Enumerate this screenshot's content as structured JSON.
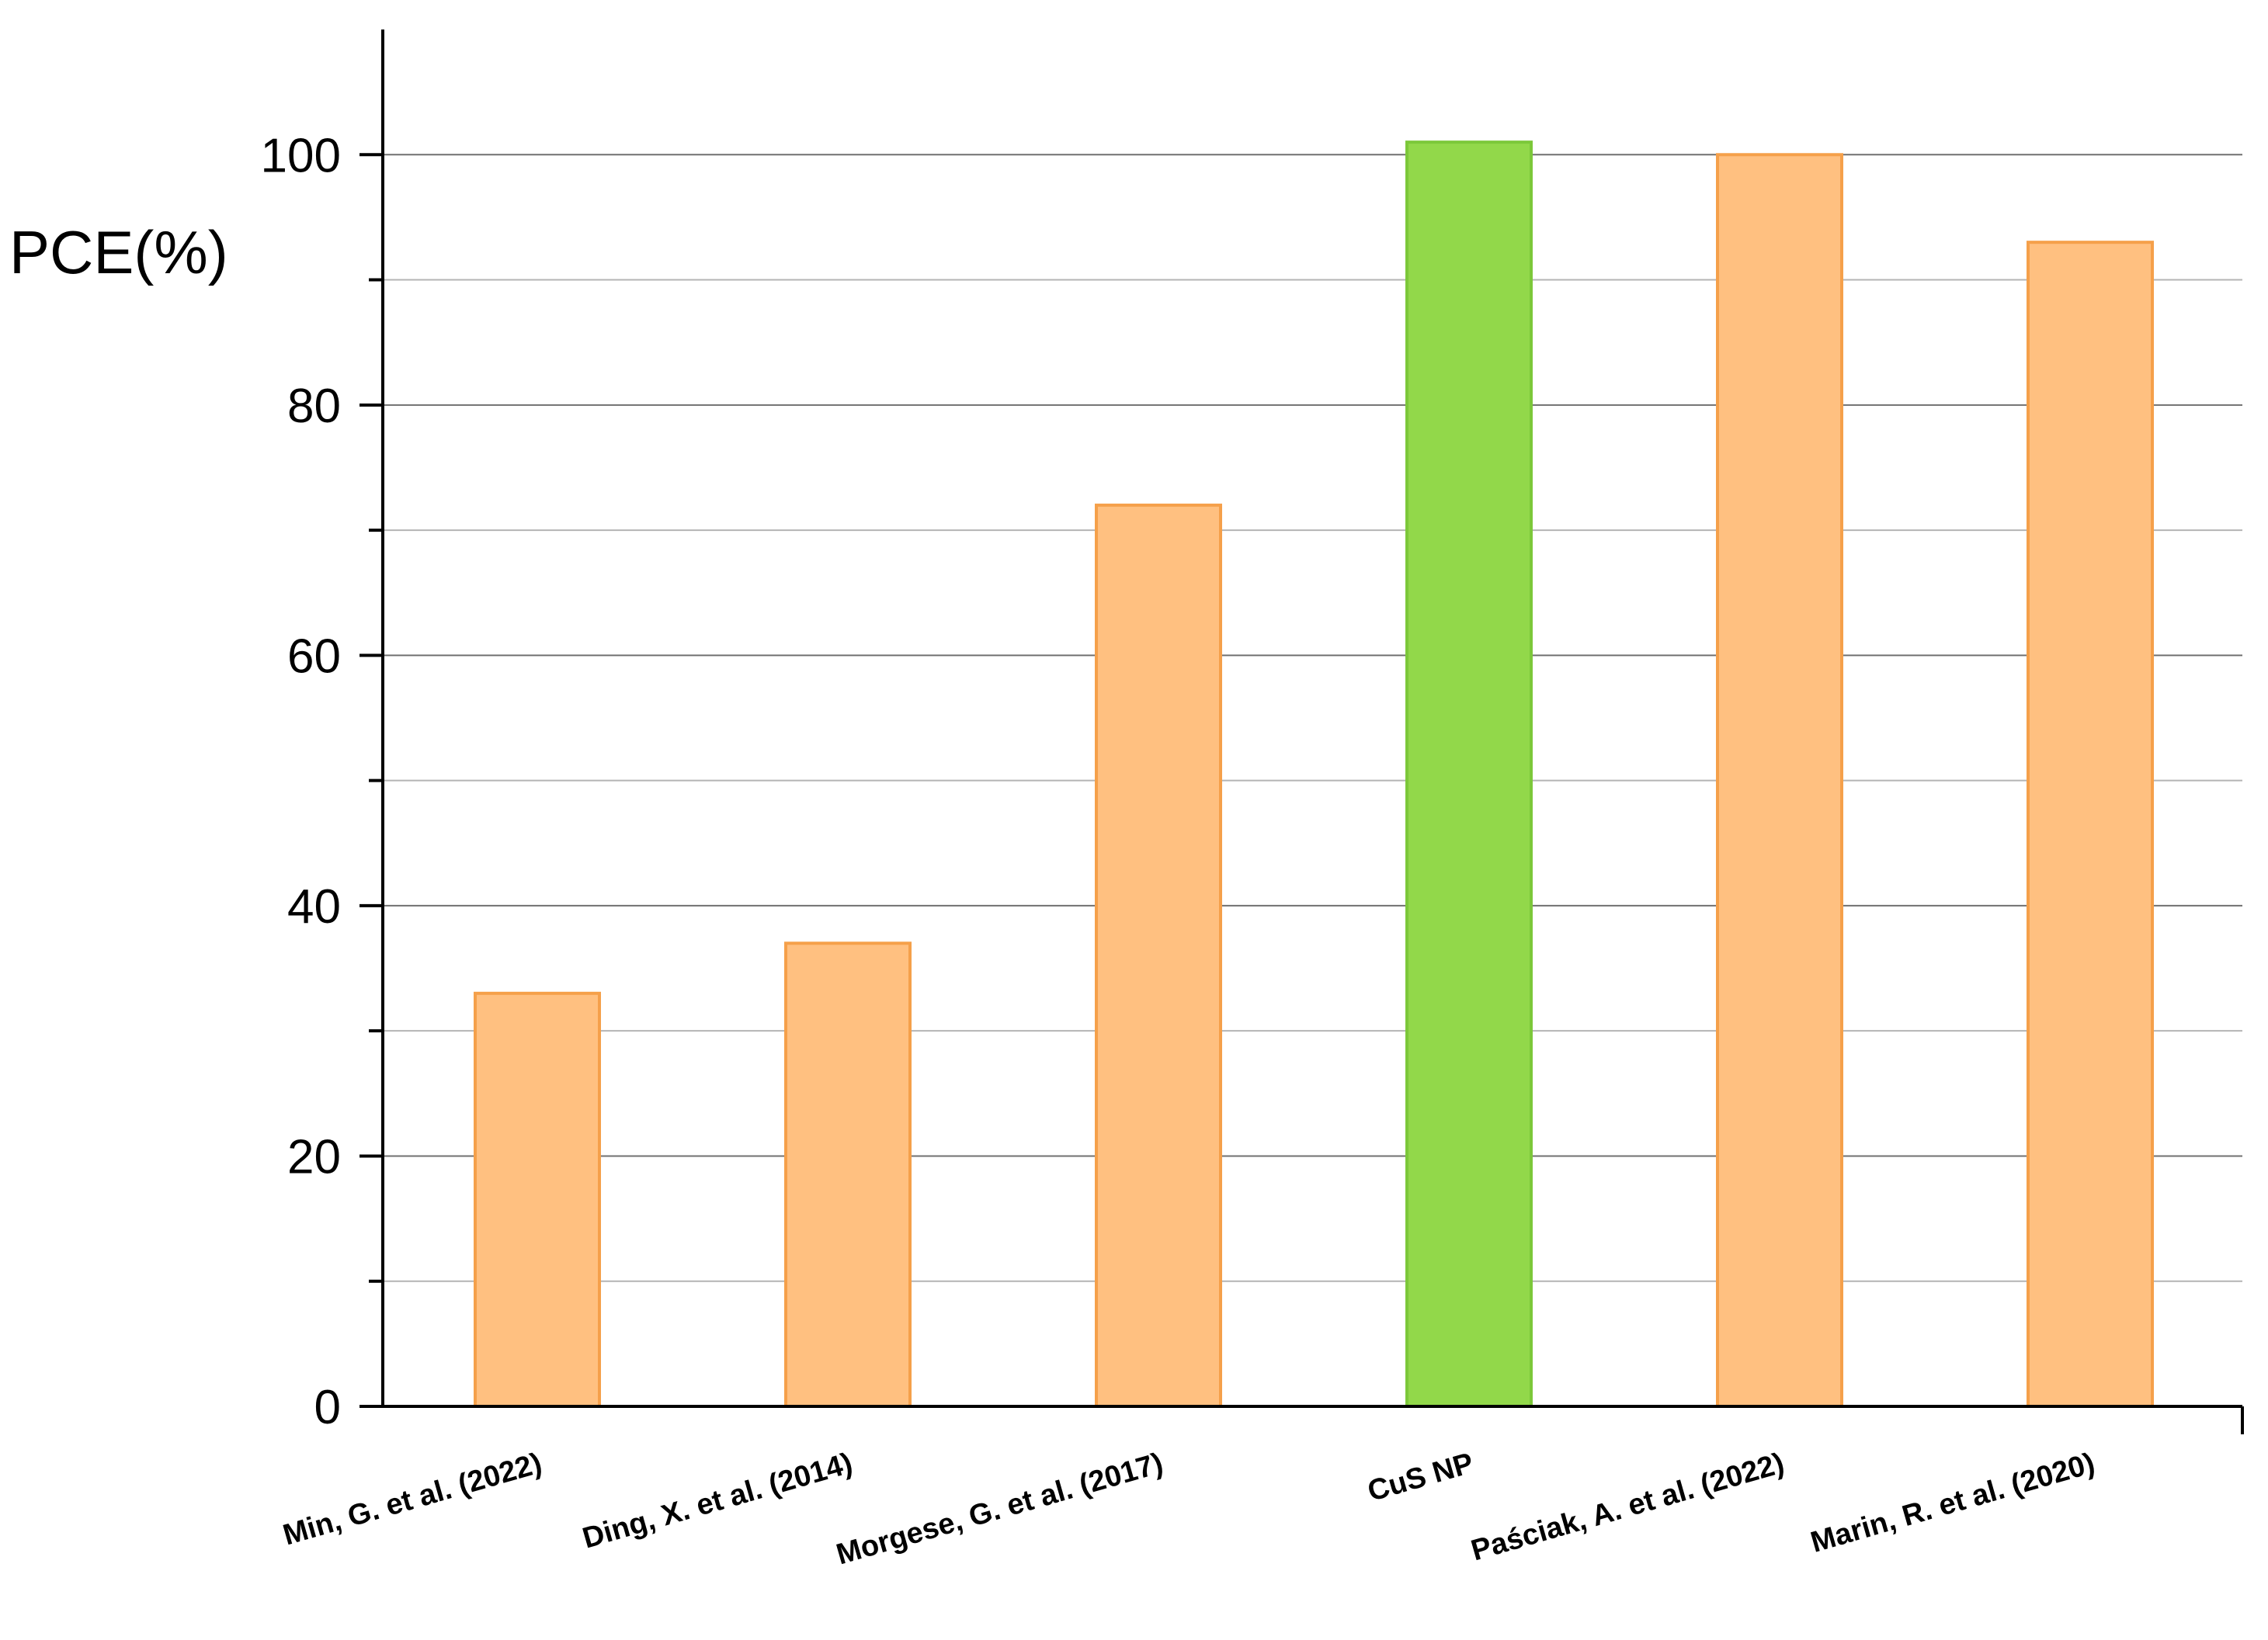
{
  "chart_data": {
    "type": "bar",
    "title": "",
    "xlabel": "",
    "ylabel": "PCE(%)",
    "ylim": [
      0,
      110
    ],
    "yticks": [
      "0",
      "20",
      "40",
      "60",
      "80",
      "100"
    ],
    "grid": true,
    "categories": [
      "Min, G. et al. (2022)",
      "Ding, X. et al. (2014)",
      "Morgese, G. et al. (2017)",
      "CuS NP",
      "Paściak, A. et al. (2022)",
      "Marin, R. et al. (2020)"
    ],
    "values": [
      33,
      37,
      72,
      101,
      100,
      93
    ],
    "colors": [
      "#FFC080",
      "#FFC080",
      "#FFC080",
      "#92D84A",
      "#FFC080",
      "#FFC080"
    ],
    "edge_colors": [
      "#F5A04A",
      "#F5A04A",
      "#F5A04A",
      "#7CC83A",
      "#F5A04A",
      "#F5A04A"
    ]
  }
}
